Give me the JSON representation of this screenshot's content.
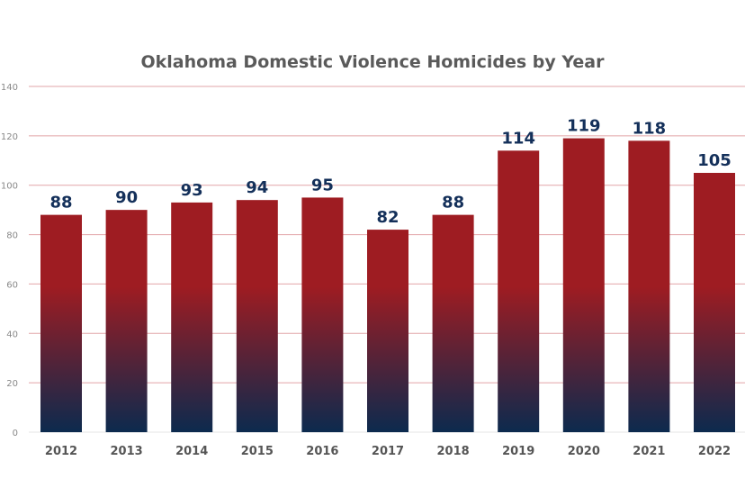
{
  "chart_data": {
    "type": "bar",
    "title": "Oklahoma Domestic Violence Homicides by Year",
    "categories": [
      "2012",
      "2013",
      "2014",
      "2015",
      "2016",
      "2017",
      "2018",
      "2019",
      "2020",
      "2021",
      "2022"
    ],
    "values": [
      88,
      90,
      93,
      94,
      95,
      82,
      88,
      114,
      119,
      118,
      105
    ],
    "xlabel": "",
    "ylabel": "",
    "ylim": [
      0,
      140
    ],
    "yticks": [
      0,
      20,
      40,
      60,
      80,
      100,
      120,
      140
    ],
    "grid": true,
    "data_labels": true,
    "colors": {
      "bar_top": "#9e1c22",
      "bar_bottom": "#0c2a4e",
      "label": "#14305a",
      "grid": "#e2a5a8",
      "axis_text": "#888888",
      "title": "#5a5a5a"
    }
  }
}
